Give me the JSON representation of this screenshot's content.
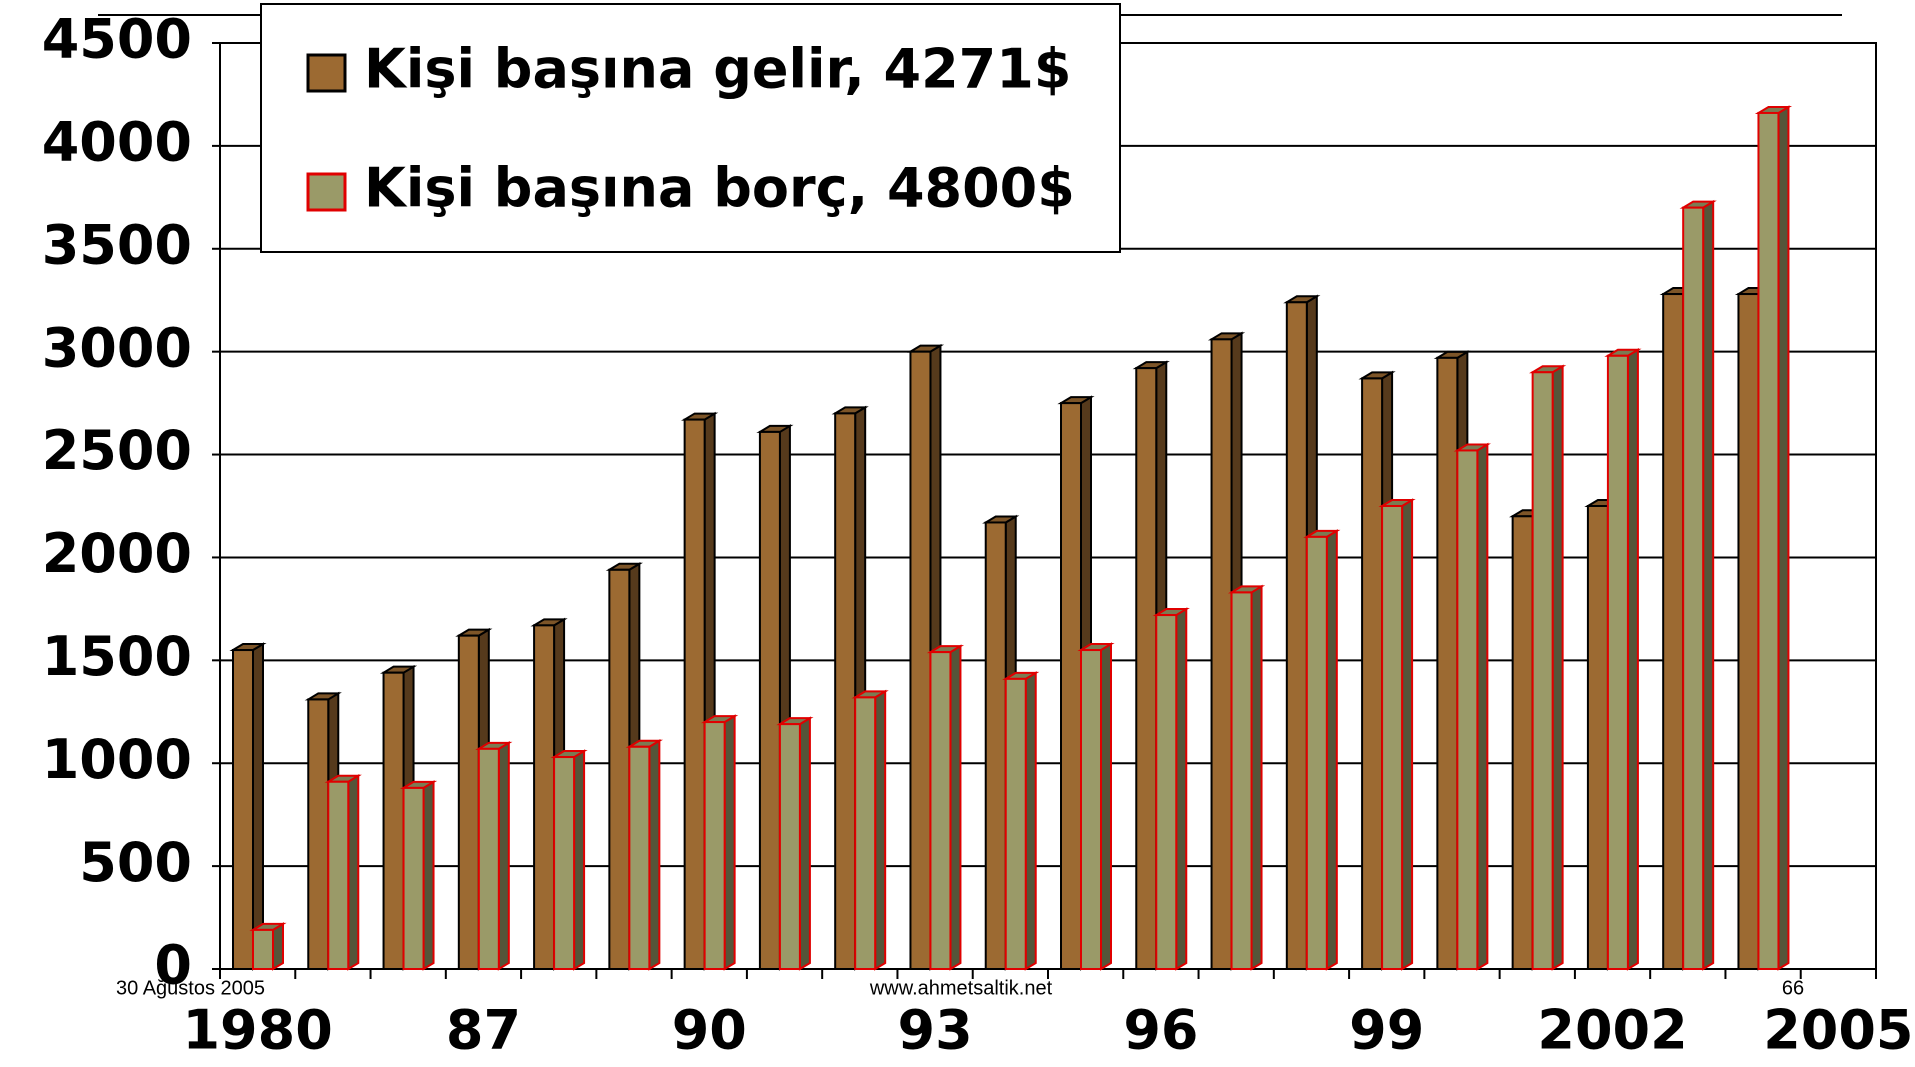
{
  "chart_data": {
    "type": "bar3d",
    "categories": [
      "1980",
      null,
      null,
      "87",
      null,
      null,
      "90",
      null,
      null,
      "93",
      null,
      null,
      "96",
      null,
      null,
      "99",
      null,
      null,
      "2002",
      null,
      null,
      "2005"
    ],
    "series": [
      {
        "name": "Kişi başına gelir, 4271$",
        "color": "#9c6a32",
        "edge": "#000000",
        "values": [
          1550,
          1310,
          1440,
          1620,
          1670,
          1940,
          2670,
          2610,
          2700,
          3000,
          2170,
          2750,
          2920,
          3060,
          3240,
          2870,
          2970,
          2200,
          2250,
          3280,
          3280,
          null
        ]
      },
      {
        "name": "Kişi başına borç, 4800$",
        "color": "#9a9a68",
        "edge": "#e00000",
        "values": [
          190,
          910,
          880,
          1070,
          1030,
          1080,
          1200,
          1190,
          1320,
          1540,
          1410,
          1550,
          1720,
          1830,
          2100,
          2250,
          2520,
          2900,
          2980,
          3700,
          4160,
          null
        ]
      }
    ],
    "ylim": [
      0,
      4500
    ],
    "yticks": [
      0,
      500,
      1000,
      1500,
      2000,
      2500,
      3000,
      3500,
      4000,
      4500
    ],
    "grid": true,
    "legend": "top-left",
    "footer": {
      "date": "30 Ağustos 2005",
      "site": "www.ahmetsaltik.net",
      "page": "66"
    }
  }
}
